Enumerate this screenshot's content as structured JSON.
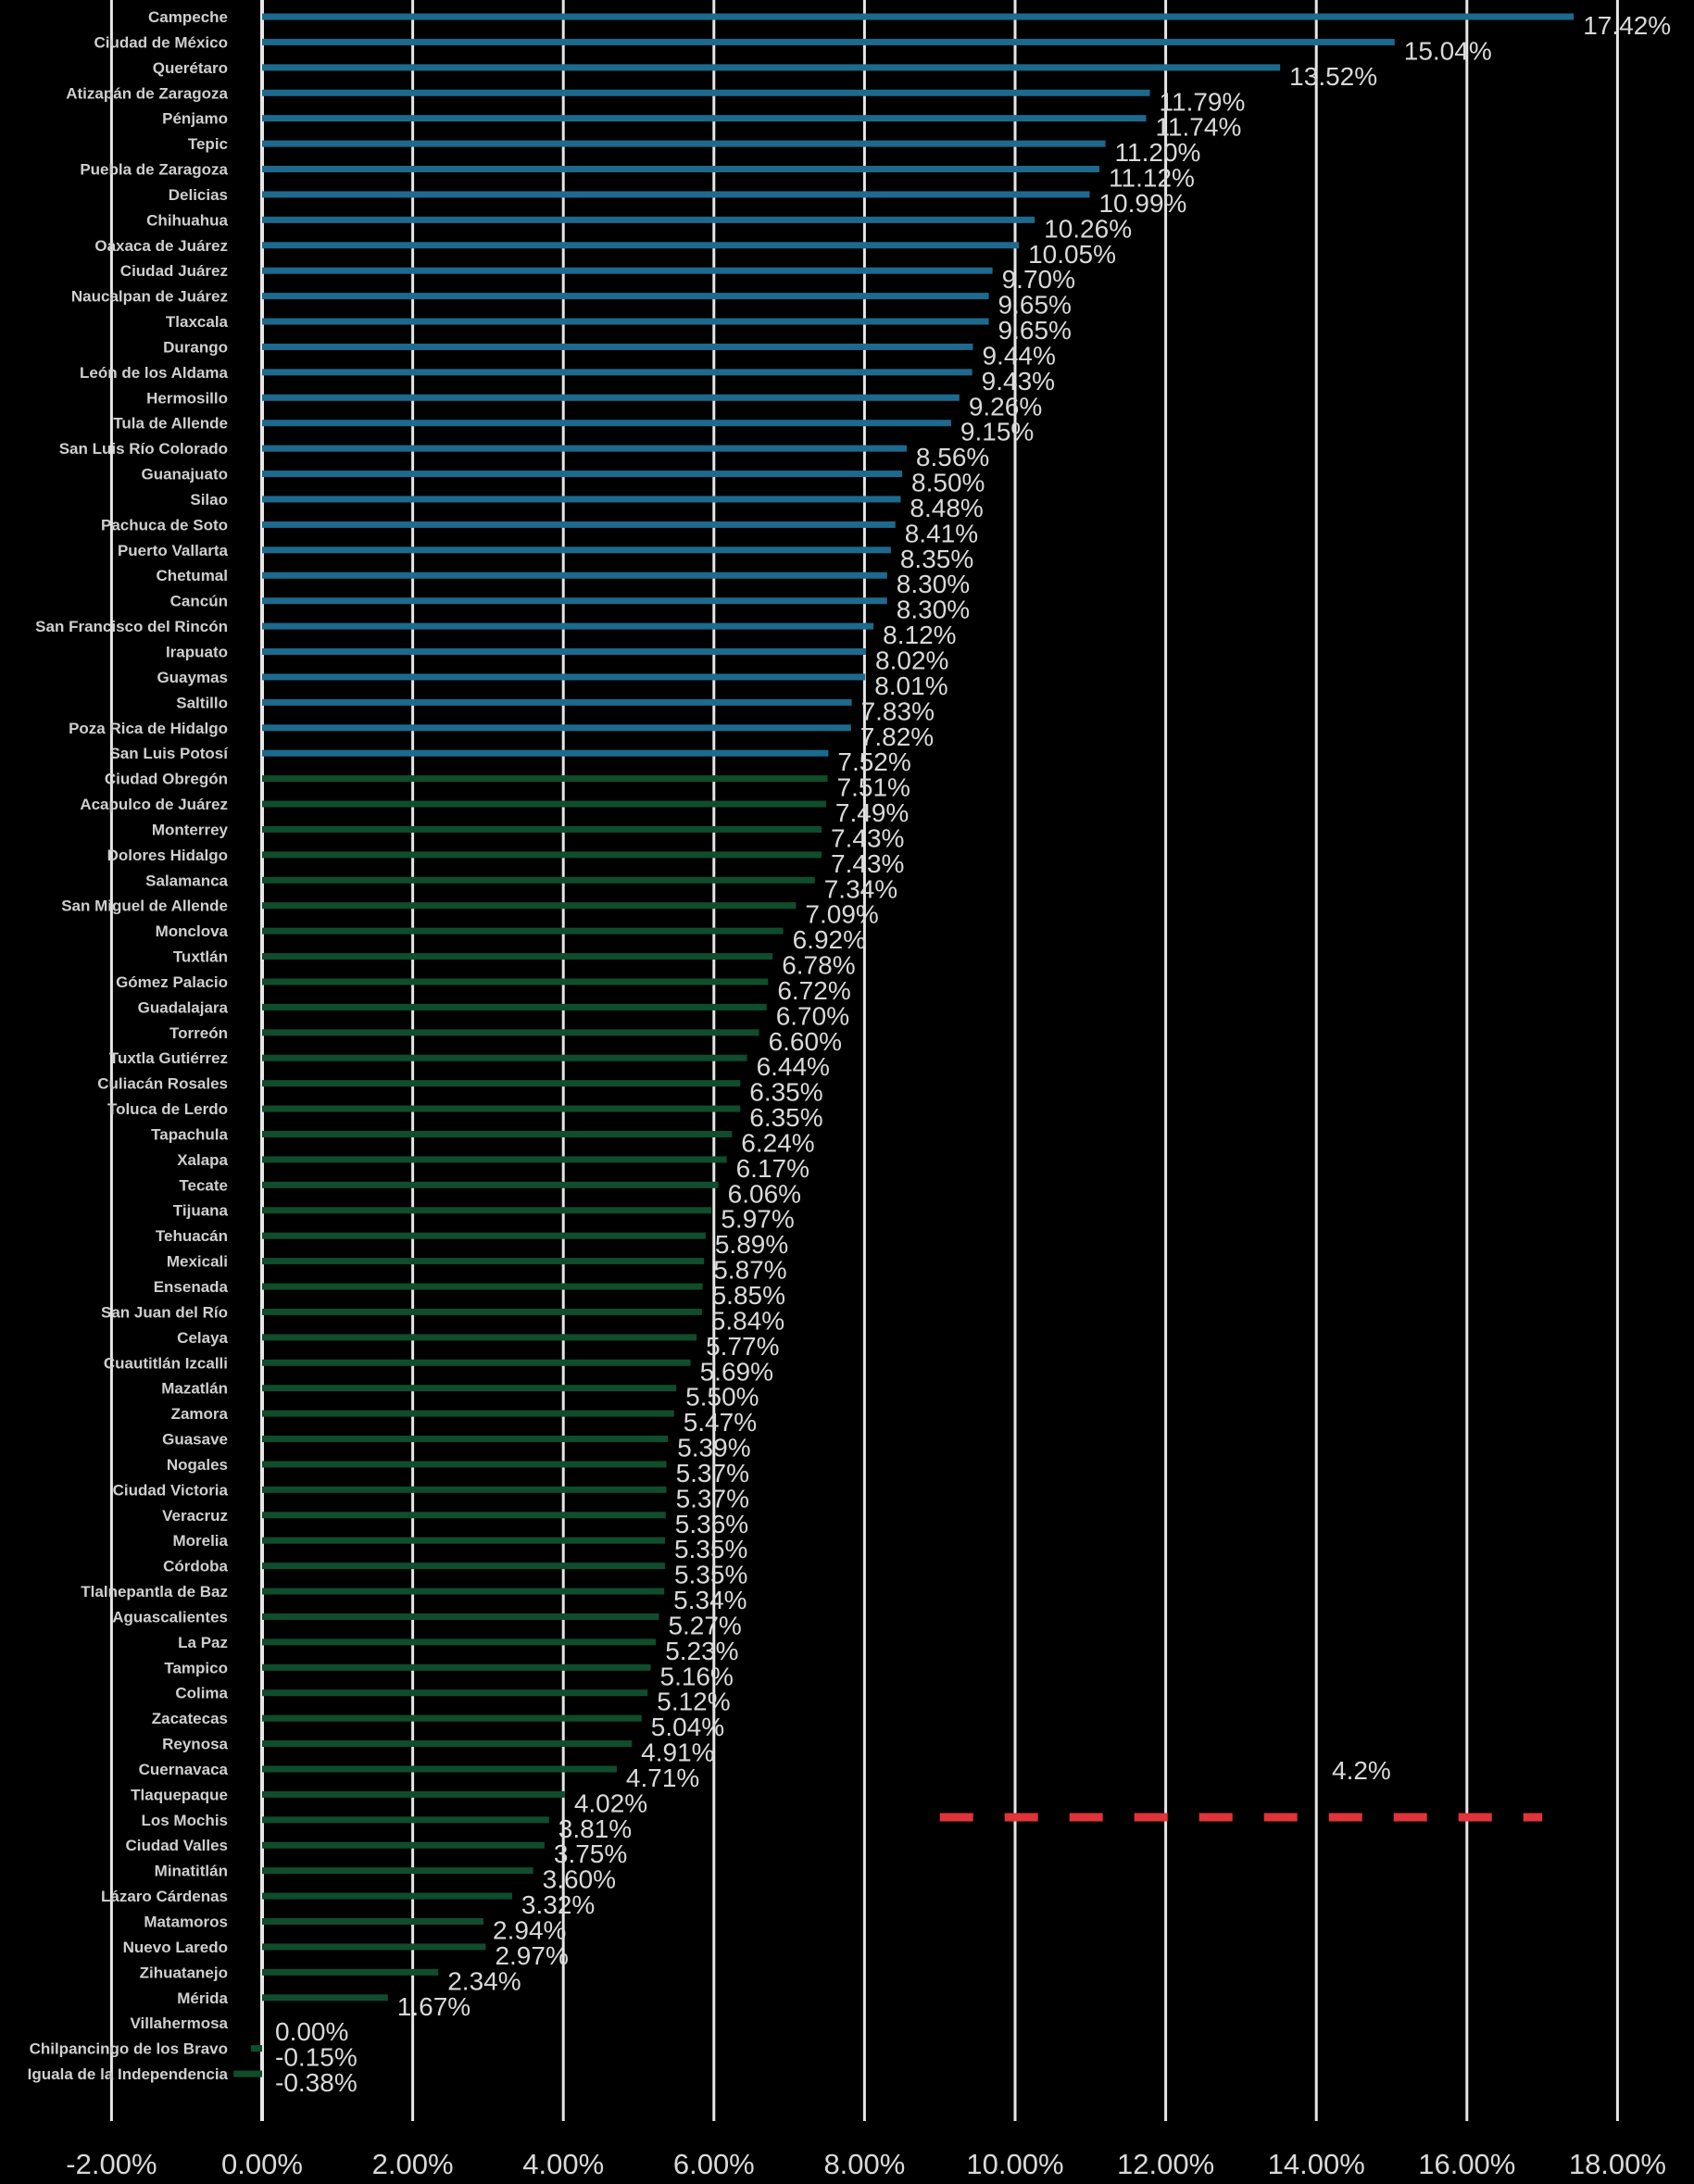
{
  "chart_data": {
    "type": "bar",
    "orientation": "horizontal",
    "title": "",
    "xlabel": "",
    "ylabel": "",
    "xlim": [
      -2,
      18
    ],
    "ticks": [
      -2,
      0,
      2,
      4,
      6,
      8,
      10,
      12,
      14,
      16,
      18
    ],
    "tick_labels": [
      "-2.00%",
      "0.00%",
      "2.00%",
      "4.00%",
      "6.00%",
      "8.00%",
      "10.00%",
      "12.00%",
      "14.00%",
      "16.00%",
      "18.00%"
    ],
    "grid": true,
    "colors": {
      "high": "#1d6a8e",
      "low": "#0f4d2c",
      "reference": "#e0333a",
      "grid": "#e6e6e6",
      "text": "#d9d9d9"
    },
    "highlight_count": 30,
    "reference": {
      "value": 4.2,
      "label": "4.2%",
      "x_start": 9,
      "x_end": 17
    },
    "categories": [
      "Campeche",
      "Ciudad de México",
      "Querétaro",
      "Atizapán de Zaragoza",
      "Pénjamo",
      "Tepic",
      "Puebla de Zaragoza",
      "Delicias",
      "Chihuahua",
      "Oaxaca de Juárez",
      "Ciudad Juárez",
      "Naucalpan de Juárez",
      "Tlaxcala",
      "Durango",
      "León de los Aldama",
      "Hermosillo",
      "Tula de Allende",
      "San Luis Río Colorado",
      "Guanajuato",
      "Silao",
      "Pachuca de Soto",
      "Puerto Vallarta",
      "Chetumal",
      "Cancún",
      "San Francisco del Rincón",
      "Irapuato",
      "Guaymas",
      "Saltillo",
      "Poza Rica de Hidalgo",
      "San Luis Potosí",
      "Ciudad Obregón",
      "Acapulco de Juárez",
      "Monterrey",
      "Dolores Hidalgo",
      "Salamanca",
      "San Miguel de Allende",
      "Monclova",
      "Tuxtlán",
      "Gómez Palacio",
      "Guadalajara",
      "Torreón",
      "Tuxtla Gutiérrez",
      "Culiacán Rosales",
      "Toluca de Lerdo",
      "Tapachula",
      "Xalapa",
      "Tecate",
      "Tijuana",
      "Tehuacán",
      "Mexicali",
      "Ensenada",
      "San Juan del Río",
      "Celaya",
      "Cuautitlán Izcalli",
      "Mazatlán",
      "Zamora",
      "Guasave",
      "Nogales",
      "Ciudad Victoria",
      "Veracruz",
      "Morelia",
      "Córdoba",
      "Tlalnepantla de Baz",
      "Aguascalientes",
      "La Paz",
      "Tampico",
      "Colima",
      "Zacatecas",
      "Reynosa",
      "Cuernavaca",
      "Tlaquepaque",
      "Los Mochis",
      "Ciudad Valles",
      "Minatitlán",
      "Lázaro Cárdenas",
      "Matamoros",
      "Nuevo Laredo",
      "Zihuatanejo",
      "Mérida",
      "Villahermosa",
      "Chilpancingo de los Bravo",
      "Iguala de la Independencia"
    ],
    "values": [
      17.42,
      15.04,
      13.52,
      11.79,
      11.74,
      11.2,
      11.12,
      10.99,
      10.26,
      10.05,
      9.7,
      9.65,
      9.65,
      9.44,
      9.43,
      9.26,
      9.15,
      8.56,
      8.5,
      8.48,
      8.41,
      8.35,
      8.3,
      8.3,
      8.12,
      8.02,
      8.01,
      7.83,
      7.82,
      7.52,
      7.51,
      7.49,
      7.43,
      7.43,
      7.34,
      7.09,
      6.92,
      6.78,
      6.72,
      6.7,
      6.6,
      6.44,
      6.35,
      6.35,
      6.24,
      6.17,
      6.06,
      5.97,
      5.89,
      5.87,
      5.85,
      5.84,
      5.77,
      5.69,
      5.5,
      5.47,
      5.39,
      5.37,
      5.37,
      5.36,
      5.35,
      5.35,
      5.34,
      5.27,
      5.23,
      5.16,
      5.12,
      5.04,
      4.91,
      4.71,
      4.02,
      3.81,
      3.75,
      3.6,
      3.32,
      2.94,
      2.97,
      2.34,
      1.67,
      0.0,
      -0.15,
      -0.38
    ],
    "value_labels": [
      "17.42%",
      "15.04%",
      "13.52%",
      "11.79%",
      "11.74%",
      "11.20%",
      "11.12%",
      "10.99%",
      "10.26%",
      "10.05%",
      "9.70%",
      "9.65%",
      "9.65%",
      "9.44%",
      "9.43%",
      "9.26%",
      "9.15%",
      "8.56%",
      "8.50%",
      "8.48%",
      "8.41%",
      "8.35%",
      "8.30%",
      "8.30%",
      "8.12%",
      "8.02%",
      "8.01%",
      "7.83%",
      "7.82%",
      "7.52%",
      "7.51%",
      "7.49%",
      "7.43%",
      "7.43%",
      "7.34%",
      "7.09%",
      "6.92%",
      "6.78%",
      "6.72%",
      "6.70%",
      "6.60%",
      "6.44%",
      "6.35%",
      "6.35%",
      "6.24%",
      "6.17%",
      "6.06%",
      "5.97%",
      "5.89%",
      "5.87%",
      "5.85%",
      "5.84%",
      "5.77%",
      "5.69%",
      "5.50%",
      "5.47%",
      "5.39%",
      "5.37%",
      "5.37%",
      "5.36%",
      "5.35%",
      "5.35%",
      "5.34%",
      "5.27%",
      "5.23%",
      "5.16%",
      "5.12%",
      "5.04%",
      "4.91%",
      "4.71%",
      "4.02%",
      "3.81%",
      "3.75%",
      "3.60%",
      "3.32%",
      "2.94%",
      "2.97%",
      "2.34%",
      "1.67%",
      "0.00%",
      "-0.15%",
      "-0.38%"
    ]
  }
}
